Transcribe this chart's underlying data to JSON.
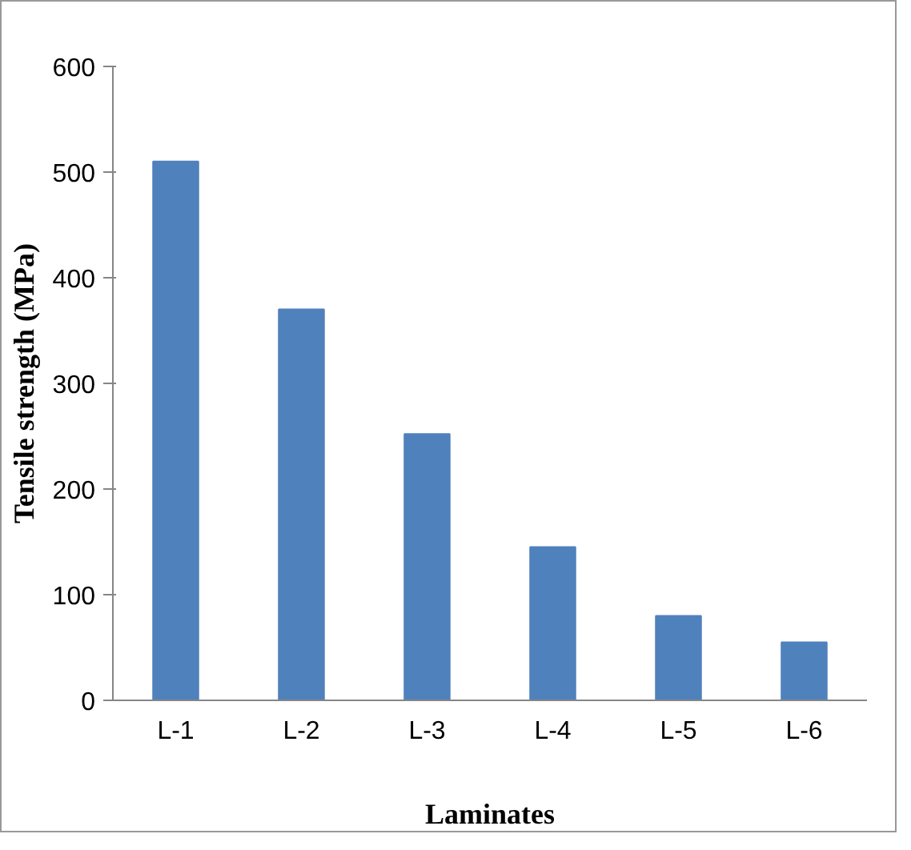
{
  "chart_data": {
    "type": "bar",
    "categories": [
      "L-1",
      "L-2",
      "L-3",
      "L-4",
      "L-5",
      "L-6"
    ],
    "values": [
      510,
      370,
      252,
      145,
      80,
      55
    ],
    "color": "#4f81bd",
    "xlabel": "Laminates",
    "ylabel": "Tensile strength (MPa)",
    "ylim": [
      0,
      600
    ],
    "yticks": [
      0,
      100,
      200,
      300,
      400,
      500,
      600
    ],
    "grid": false
  }
}
